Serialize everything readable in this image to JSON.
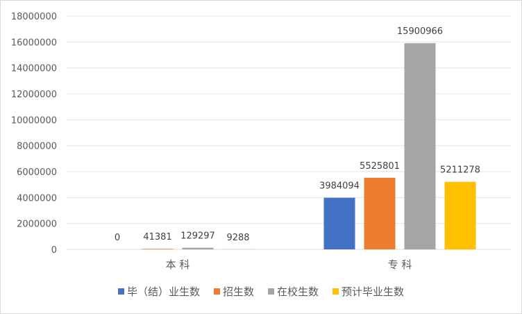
{
  "chart_data": {
    "type": "bar",
    "categories": [
      "本 科",
      "专 科"
    ],
    "series": [
      {
        "name": "毕（结）业生数",
        "values": [
          0,
          3984094
        ],
        "color": "#4472c4"
      },
      {
        "name": "招生数",
        "values": [
          41381,
          5525801
        ],
        "color": "#ed7d31"
      },
      {
        "name": "在校生数",
        "values": [
          129297,
          15900966
        ],
        "color": "#a5a5a5"
      },
      {
        "name": "预计毕业生数",
        "values": [
          9288,
          5211278
        ],
        "color": "#ffc000"
      }
    ],
    "yticks": [
      "0",
      "2000000",
      "4000000",
      "6000000",
      "8000000",
      "10000000",
      "12000000",
      "14000000",
      "16000000",
      "18000000"
    ],
    "ylim": [
      0,
      18000000
    ],
    "grid": true,
    "legend_position": "bottom"
  }
}
